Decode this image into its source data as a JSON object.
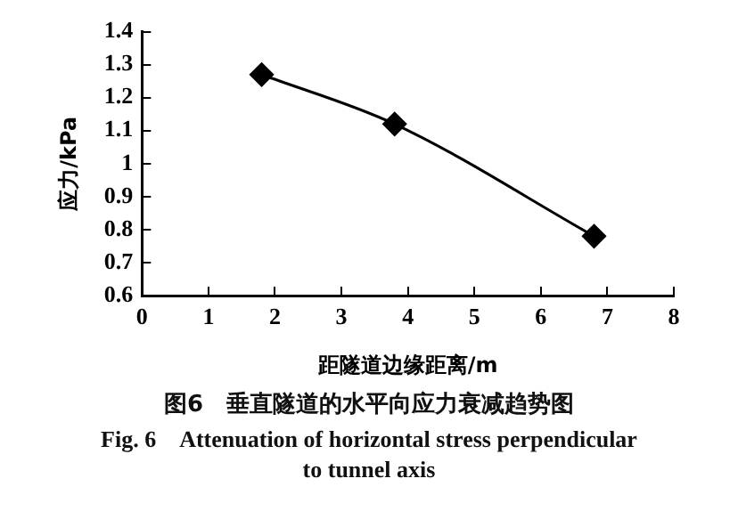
{
  "chart_data": {
    "type": "line",
    "title": "图6　垂直隧道的水平向应力衰减趋势图",
    "subtitle": "Fig. 6　Attenuation of horizontal stress perpendicular to tunnel axis",
    "xlabel": "距隧道边缘距离/m",
    "ylabel": "应力/kPa",
    "x": [
      1.8,
      3.8,
      6.8
    ],
    "series": [
      {
        "color": "#000000",
        "values": [
          1.27,
          1.12,
          0.78
        ]
      }
    ],
    "xlim": [
      0,
      8
    ],
    "xticks": [
      0,
      1,
      2,
      3,
      4,
      5,
      6,
      7,
      8
    ],
    "ylim": [
      0.6,
      1.4
    ],
    "yticks": [
      0.6,
      0.7,
      0.8,
      0.9,
      1,
      1.1,
      1.2,
      1.3,
      1.4
    ],
    "grid": false,
    "legend": false,
    "marker": "diamond",
    "line_style": "solid"
  }
}
